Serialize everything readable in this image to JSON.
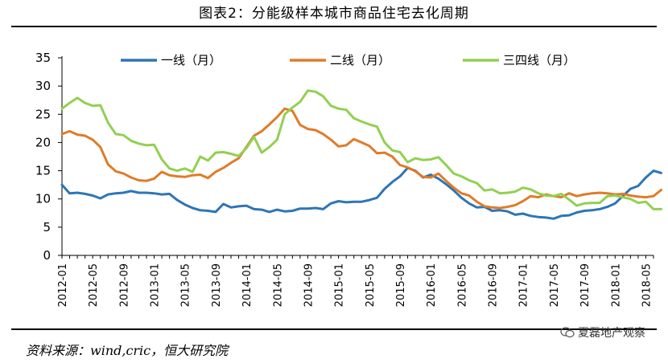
{
  "header": {
    "title": "图表2：分能级样本城市商品住宅去化周期"
  },
  "footer": {
    "source": "资料来源：wind,cric，恒大研究院",
    "watermark": "夏磊地产观察",
    "watermark_icon": "wechat-icon"
  },
  "chart_data": {
    "type": "line",
    "title": "图表2：分能级样本城市商品住宅去化周期",
    "xlabel": "",
    "ylabel": "",
    "ylim": [
      0,
      35
    ],
    "yticks": [
      0,
      5,
      10,
      15,
      20,
      25,
      30,
      35
    ],
    "grid": false,
    "legend_position": "top",
    "x_tick_labels": [
      "2012-01",
      "2012-05",
      "2012-09",
      "2013-01",
      "2013-05",
      "2013-09",
      "2014-01",
      "2014-05",
      "2014-09",
      "2015-01",
      "2015-05",
      "2015-09",
      "2016-01",
      "2016-05",
      "2016-09",
      "2017-01",
      "2017-05",
      "2017-09",
      "2018-01",
      "2018-05"
    ],
    "x_start": "2012-01",
    "x_end": "2018-06",
    "series": [
      {
        "name": "一线（月）",
        "color": "#2E75B6",
        "points": [
          [
            "2012-01",
            12.5
          ],
          [
            "2012-02",
            11.0
          ],
          [
            "2012-03",
            11.1
          ],
          [
            "2012-04",
            10.9
          ],
          [
            "2012-05",
            10.6
          ],
          [
            "2012-06",
            10.1
          ],
          [
            "2012-07",
            10.8
          ],
          [
            "2012-08",
            11.0
          ],
          [
            "2012-09",
            11.1
          ],
          [
            "2012-10",
            11.4
          ],
          [
            "2012-11",
            11.1
          ],
          [
            "2012-12",
            11.1
          ],
          [
            "2013-01",
            11.0
          ],
          [
            "2013-02",
            10.8
          ],
          [
            "2013-03",
            10.9
          ],
          [
            "2013-04",
            9.8
          ],
          [
            "2013-05",
            9.0
          ],
          [
            "2013-06",
            8.4
          ],
          [
            "2013-07",
            8.0
          ],
          [
            "2013-08",
            7.9
          ],
          [
            "2013-09",
            7.7
          ],
          [
            "2013-10",
            9.1
          ],
          [
            "2013-11",
            8.5
          ],
          [
            "2013-12",
            8.7
          ],
          [
            "2014-01",
            8.8
          ],
          [
            "2014-02",
            8.2
          ],
          [
            "2014-03",
            8.1
          ],
          [
            "2014-04",
            7.7
          ],
          [
            "2014-05",
            8.1
          ],
          [
            "2014-06",
            7.8
          ],
          [
            "2014-07",
            7.9
          ],
          [
            "2014-08",
            8.3
          ],
          [
            "2014-09",
            8.3
          ],
          [
            "2014-10",
            8.4
          ],
          [
            "2014-11",
            8.2
          ],
          [
            "2014-12",
            9.2
          ],
          [
            "2015-01",
            9.6
          ],
          [
            "2015-02",
            9.4
          ],
          [
            "2015-03",
            9.5
          ],
          [
            "2015-04",
            9.5
          ],
          [
            "2015-05",
            9.8
          ],
          [
            "2015-06",
            10.2
          ],
          [
            "2015-07",
            11.8
          ],
          [
            "2015-08",
            13.0
          ],
          [
            "2015-09",
            14.0
          ],
          [
            "2015-10",
            15.5
          ],
          [
            "2015-11",
            15.0
          ],
          [
            "2015-12",
            13.8
          ],
          [
            "2016-01",
            14.3
          ],
          [
            "2016-02",
            13.6
          ],
          [
            "2016-03",
            12.6
          ],
          [
            "2016-04",
            11.5
          ],
          [
            "2016-05",
            10.2
          ],
          [
            "2016-06",
            9.2
          ],
          [
            "2016-07",
            8.5
          ],
          [
            "2016-08",
            8.6
          ],
          [
            "2016-09",
            7.9
          ],
          [
            "2016-10",
            8.0
          ],
          [
            "2016-11",
            7.8
          ],
          [
            "2016-12",
            7.2
          ],
          [
            "2017-01",
            7.4
          ],
          [
            "2017-02",
            7.0
          ],
          [
            "2017-03",
            6.8
          ],
          [
            "2017-04",
            6.7
          ],
          [
            "2017-05",
            6.5
          ],
          [
            "2017-06",
            7.0
          ],
          [
            "2017-07",
            7.1
          ],
          [
            "2017-08",
            7.6
          ],
          [
            "2017-09",
            7.9
          ],
          [
            "2017-10",
            8.0
          ],
          [
            "2017-11",
            8.2
          ],
          [
            "2017-12",
            8.6
          ],
          [
            "2018-01",
            9.2
          ],
          [
            "2018-02",
            10.5
          ],
          [
            "2018-03",
            11.8
          ],
          [
            "2018-04",
            12.3
          ],
          [
            "2018-05",
            13.8
          ],
          [
            "2018-06",
            15.0
          ],
          [
            "2018-07",
            14.6
          ]
        ]
      },
      {
        "name": "二线（月）",
        "color": "#E07B29",
        "points": [
          [
            "2012-01",
            21.5
          ],
          [
            "2012-02",
            22.0
          ],
          [
            "2012-03",
            21.4
          ],
          [
            "2012-04",
            21.2
          ],
          [
            "2012-05",
            20.5
          ],
          [
            "2012-06",
            19.2
          ],
          [
            "2012-07",
            16.1
          ],
          [
            "2012-08",
            14.9
          ],
          [
            "2012-09",
            14.5
          ],
          [
            "2012-10",
            13.8
          ],
          [
            "2012-11",
            13.3
          ],
          [
            "2012-12",
            13.2
          ],
          [
            "2013-01",
            13.6
          ],
          [
            "2013-02",
            14.8
          ],
          [
            "2013-03",
            14.2
          ],
          [
            "2013-04",
            14.0
          ],
          [
            "2013-05",
            13.9
          ],
          [
            "2013-06",
            14.2
          ],
          [
            "2013-07",
            14.3
          ],
          [
            "2013-08",
            13.7
          ],
          [
            "2013-09",
            14.8
          ],
          [
            "2013-10",
            15.5
          ],
          [
            "2013-11",
            16.4
          ],
          [
            "2013-12",
            17.2
          ],
          [
            "2014-01",
            19.2
          ],
          [
            "2014-02",
            21.2
          ],
          [
            "2014-03",
            22.0
          ],
          [
            "2014-04",
            23.2
          ],
          [
            "2014-05",
            24.5
          ],
          [
            "2014-06",
            26.0
          ],
          [
            "2014-07",
            25.6
          ],
          [
            "2014-08",
            23.1
          ],
          [
            "2014-09",
            22.4
          ],
          [
            "2014-10",
            22.2
          ],
          [
            "2014-11",
            21.5
          ],
          [
            "2014-12",
            20.5
          ],
          [
            "2015-01",
            19.3
          ],
          [
            "2015-02",
            19.5
          ],
          [
            "2015-03",
            20.6
          ],
          [
            "2015-04",
            20.0
          ],
          [
            "2015-05",
            19.4
          ],
          [
            "2015-06",
            18.1
          ],
          [
            "2015-07",
            18.2
          ],
          [
            "2015-08",
            17.5
          ],
          [
            "2015-09",
            16.0
          ],
          [
            "2015-10",
            15.6
          ],
          [
            "2015-11",
            14.9
          ],
          [
            "2015-12",
            13.9
          ],
          [
            "2016-01",
            13.8
          ],
          [
            "2016-02",
            14.5
          ],
          [
            "2016-03",
            13.2
          ],
          [
            "2016-04",
            12.0
          ],
          [
            "2016-05",
            11.0
          ],
          [
            "2016-06",
            10.6
          ],
          [
            "2016-07",
            9.5
          ],
          [
            "2016-08",
            8.7
          ],
          [
            "2016-09",
            8.5
          ],
          [
            "2016-10",
            8.4
          ],
          [
            "2016-11",
            8.6
          ],
          [
            "2016-12",
            8.9
          ],
          [
            "2017-01",
            9.6
          ],
          [
            "2017-02",
            10.5
          ],
          [
            "2017-03",
            10.3
          ],
          [
            "2017-04",
            10.8
          ],
          [
            "2017-05",
            10.5
          ],
          [
            "2017-06",
            10.3
          ],
          [
            "2017-07",
            11.0
          ],
          [
            "2017-08",
            10.5
          ],
          [
            "2017-09",
            10.8
          ],
          [
            "2017-10",
            11.0
          ],
          [
            "2017-11",
            11.1
          ],
          [
            "2017-12",
            11.0
          ],
          [
            "2018-01",
            10.8
          ],
          [
            "2018-02",
            10.9
          ],
          [
            "2018-03",
            10.6
          ],
          [
            "2018-04",
            10.4
          ],
          [
            "2018-05",
            10.3
          ],
          [
            "2018-06",
            10.5
          ],
          [
            "2018-07",
            11.6
          ]
        ]
      },
      {
        "name": "三四线（月）",
        "color": "#92D050",
        "points": [
          [
            "2012-01",
            26.0
          ],
          [
            "2012-02",
            27.0
          ],
          [
            "2012-03",
            27.9
          ],
          [
            "2012-04",
            27.0
          ],
          [
            "2012-05",
            26.5
          ],
          [
            "2012-06",
            26.6
          ],
          [
            "2012-07",
            23.5
          ],
          [
            "2012-08",
            21.5
          ],
          [
            "2012-09",
            21.3
          ],
          [
            "2012-10",
            20.3
          ],
          [
            "2012-11",
            19.8
          ],
          [
            "2012-12",
            19.5
          ],
          [
            "2013-01",
            19.6
          ],
          [
            "2013-02",
            17.0
          ],
          [
            "2013-03",
            15.4
          ],
          [
            "2013-04",
            15.0
          ],
          [
            "2013-05",
            15.4
          ],
          [
            "2013-06",
            14.8
          ],
          [
            "2013-07",
            17.5
          ],
          [
            "2013-08",
            16.8
          ],
          [
            "2013-09",
            18.2
          ],
          [
            "2013-10",
            18.3
          ],
          [
            "2013-11",
            18.0
          ],
          [
            "2013-12",
            17.6
          ],
          [
            "2014-01",
            19.0
          ],
          [
            "2014-02",
            21.0
          ],
          [
            "2014-03",
            18.2
          ],
          [
            "2014-04",
            19.2
          ],
          [
            "2014-05",
            20.5
          ],
          [
            "2014-06",
            25.0
          ],
          [
            "2014-07",
            26.2
          ],
          [
            "2014-08",
            27.2
          ],
          [
            "2014-09",
            29.2
          ],
          [
            "2014-10",
            29.0
          ],
          [
            "2014-11",
            28.2
          ],
          [
            "2014-12",
            26.5
          ],
          [
            "2015-01",
            26.0
          ],
          [
            "2015-02",
            25.8
          ],
          [
            "2015-03",
            24.3
          ],
          [
            "2015-04",
            23.7
          ],
          [
            "2015-05",
            23.2
          ],
          [
            "2015-06",
            22.8
          ],
          [
            "2015-07",
            20.0
          ],
          [
            "2015-08",
            18.6
          ],
          [
            "2015-09",
            18.3
          ],
          [
            "2015-10",
            16.5
          ],
          [
            "2015-11",
            17.2
          ],
          [
            "2015-12",
            16.9
          ],
          [
            "2016-01",
            17.0
          ],
          [
            "2016-02",
            17.4
          ],
          [
            "2016-03",
            16.0
          ],
          [
            "2016-04",
            14.5
          ],
          [
            "2016-05",
            14.0
          ],
          [
            "2016-06",
            13.3
          ],
          [
            "2016-07",
            12.8
          ],
          [
            "2016-08",
            11.5
          ],
          [
            "2016-09",
            11.7
          ],
          [
            "2016-10",
            11.0
          ],
          [
            "2016-11",
            11.1
          ],
          [
            "2016-12",
            11.3
          ],
          [
            "2017-01",
            12.0
          ],
          [
            "2017-02",
            11.7
          ],
          [
            "2017-03",
            11.0
          ],
          [
            "2017-04",
            10.6
          ],
          [
            "2017-05",
            10.5
          ],
          [
            "2017-06",
            10.9
          ],
          [
            "2017-07",
            9.9
          ],
          [
            "2017-08",
            8.8
          ],
          [
            "2017-09",
            9.2
          ],
          [
            "2017-10",
            9.3
          ],
          [
            "2017-11",
            9.3
          ],
          [
            "2017-12",
            10.5
          ],
          [
            "2018-01",
            10.6
          ],
          [
            "2018-02",
            10.3
          ],
          [
            "2018-03",
            10.0
          ],
          [
            "2018-04",
            9.3
          ],
          [
            "2018-05",
            9.5
          ],
          [
            "2018-06",
            8.2
          ],
          [
            "2018-07",
            8.2
          ]
        ]
      }
    ]
  }
}
